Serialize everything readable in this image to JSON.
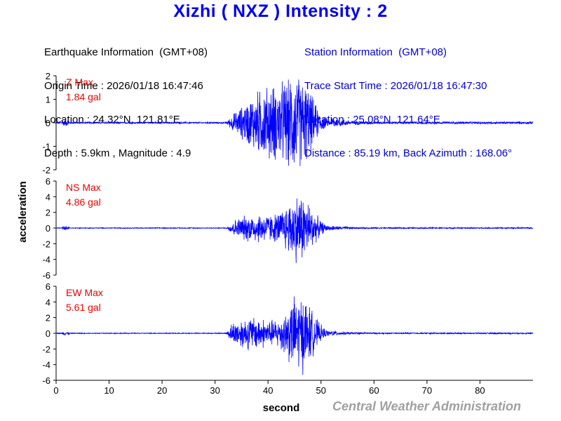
{
  "title": "Xizhi  ( NXZ )  Intensity : 2",
  "earthquake_info": {
    "header": "Earthquake Information  (GMT+08)",
    "origin_time": "Origin Time : 2026/01/18 16:47:46",
    "location": "Location : 24.32°N, 121.81°E",
    "depth_magnitude": "Depth : 5.9km , Magnitude : 4.9"
  },
  "station_info": {
    "header": "Station Information  (GMT+08)",
    "trace_start": "Trace Start Time : 2026/01/18 16:47:30",
    "location": "Location : 25.08°N, 121.64°E",
    "distance": "Distance : 85.19 km, Back Azimuth : 168.06°"
  },
  "credit": "Central Weather Administration",
  "colors": {
    "trace": "#0000ff",
    "label": "#ee0000",
    "title": "#0000ee",
    "credit": "#a0a0a0"
  },
  "chart_data": [
    {
      "type": "line",
      "channel_label": "Z Max",
      "max_label": "1.84 gal",
      "max_abs": 1.84,
      "ylim": [
        -2,
        2
      ],
      "yticks": [
        "2",
        "1",
        "0",
        "-1",
        "-2"
      ],
      "envelope": {
        "noise": 0.03,
        "onset": 32,
        "peak_time": 40,
        "peak": 1.3,
        "end": 60,
        "secondary_peak_time": 46,
        "secondary_peak": 1.84
      },
      "grid": false
    },
    {
      "type": "line",
      "channel_label": "NS Max",
      "max_label": "4.86 gal",
      "max_abs": 4.86,
      "ylim": [
        -6,
        6
      ],
      "yticks": [
        "6",
        "4",
        "2",
        "0",
        "-2",
        "-4",
        "-6"
      ],
      "envelope": {
        "noise": 0.05,
        "onset": 32,
        "peak_time": 38,
        "peak": 1.6,
        "end": 62,
        "secondary_peak_time": 46,
        "secondary_peak": 4.86
      },
      "grid": false
    },
    {
      "type": "line",
      "channel_label": "EW Max",
      "max_label": "5.61 gal",
      "max_abs": 5.61,
      "ylim": [
        -6,
        6
      ],
      "yticks": [
        "6",
        "4",
        "2",
        "0",
        "-2",
        "-4",
        "-6"
      ],
      "envelope": {
        "noise": 0.05,
        "onset": 32,
        "peak_time": 37,
        "peak": 1.8,
        "end": 64,
        "secondary_peak_time": 46,
        "secondary_peak": 5.61
      },
      "grid": false
    }
  ],
  "xaxis": {
    "label": "second",
    "xlim": [
      0,
      90
    ],
    "ticks": [
      0,
      10,
      20,
      30,
      40,
      50,
      60,
      70,
      80
    ]
  },
  "yaxis_label": "acceleration"
}
